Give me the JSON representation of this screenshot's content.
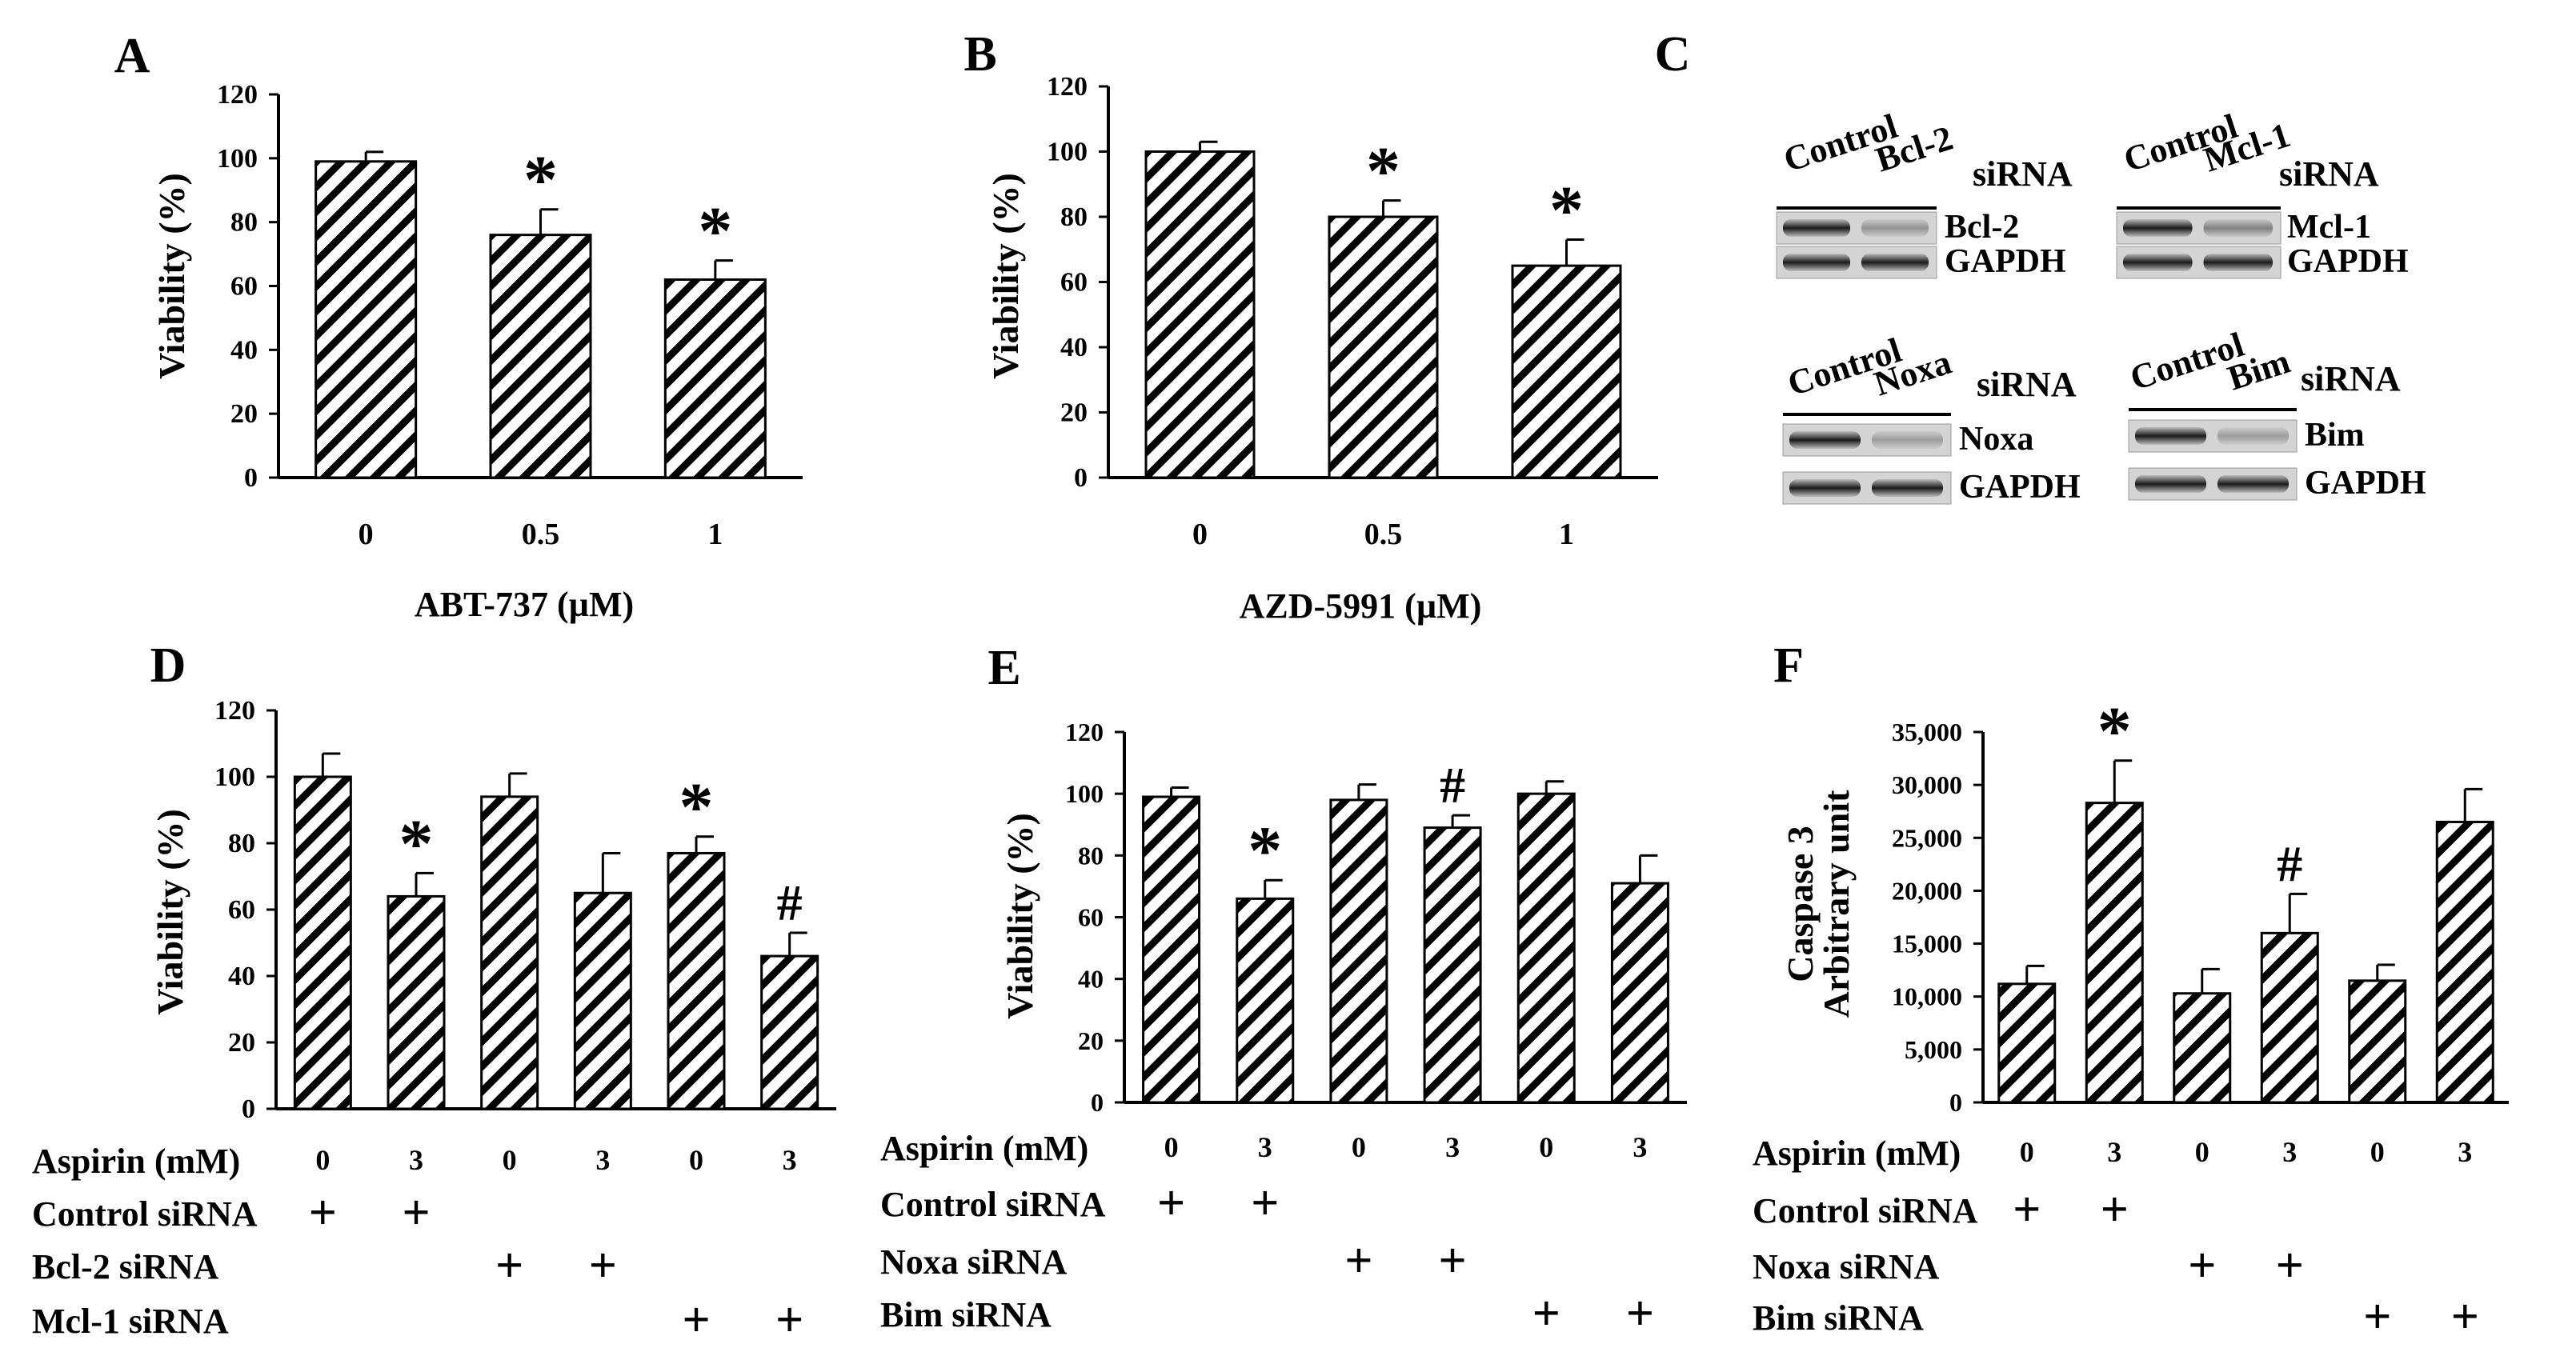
{
  "chart_data": [
    {
      "panel": "A",
      "type": "bar",
      "categories": [
        "0",
        "0.5",
        "1"
      ],
      "values": [
        99,
        76,
        62
      ],
      "errors": [
        3,
        8,
        6
      ],
      "annotations": [
        "",
        "*",
        "*"
      ],
      "xlabel": "ABT-737 (µM)",
      "ylabel": "Viability (%)",
      "ylim": [
        0,
        120
      ],
      "yticks": [
        "0",
        "20",
        "40",
        "60",
        "80",
        "100",
        "120"
      ],
      "grid": false
    },
    {
      "panel": "B",
      "type": "bar",
      "categories": [
        "0",
        "0.5",
        "1"
      ],
      "values": [
        100,
        80,
        65
      ],
      "errors": [
        3,
        5,
        8
      ],
      "annotations": [
        "",
        "*",
        "*"
      ],
      "xlabel": "AZD-5991 (µM)",
      "ylabel": "Viability (%)",
      "ylim": [
        0,
        120
      ],
      "yticks": [
        "0",
        "20",
        "40",
        "60",
        "80",
        "100",
        "120"
      ],
      "grid": false
    },
    {
      "panel": "D",
      "type": "bar",
      "categories": [
        "0",
        "3",
        "0",
        "3",
        "0",
        "3"
      ],
      "values": [
        100,
        64,
        94,
        65,
        77,
        46
      ],
      "errors": [
        7,
        7,
        7,
        12,
        5,
        7
      ],
      "annotations": [
        "",
        "*",
        "",
        "",
        "*",
        "#"
      ],
      "ylabel": "Viability (%)",
      "ylim": [
        0,
        120
      ],
      "yticks": [
        "0",
        "20",
        "40",
        "60",
        "80",
        "100",
        "120"
      ],
      "grid": false,
      "condition_rows": [
        {
          "label": "Aspirin (mM)",
          "marks": [
            "0",
            "3",
            "0",
            "3",
            "0",
            "3"
          ]
        },
        {
          "label": "Control siRNA",
          "marks": [
            "+",
            "+",
            "",
            "",
            "",
            ""
          ]
        },
        {
          "label": "Bcl-2 siRNA",
          "marks": [
            "",
            "",
            "+",
            "+",
            "",
            ""
          ]
        },
        {
          "label": "Mcl-1 siRNA",
          "marks": [
            "",
            "",
            "",
            "",
            "+",
            "+"
          ]
        }
      ]
    },
    {
      "panel": "E",
      "type": "bar",
      "categories": [
        "0",
        "3",
        "0",
        "3",
        "0",
        "3"
      ],
      "values": [
        99,
        66,
        98,
        89,
        100,
        71
      ],
      "errors": [
        3,
        6,
        5,
        4,
        4,
        9
      ],
      "annotations": [
        "",
        "*",
        "",
        "#",
        "",
        ""
      ],
      "ylabel": "Viability (%)",
      "ylim": [
        0,
        120
      ],
      "yticks": [
        "0",
        "20",
        "40",
        "60",
        "80",
        "100",
        "120"
      ],
      "grid": false,
      "condition_rows": [
        {
          "label": "Aspirin (mM)",
          "marks": [
            "0",
            "3",
            "0",
            "3",
            "0",
            "3"
          ]
        },
        {
          "label": "Control siRNA",
          "marks": [
            "+",
            "+",
            "",
            "",
            "",
            ""
          ]
        },
        {
          "label": "Noxa siRNA",
          "marks": [
            "",
            "",
            "+",
            "+",
            "",
            ""
          ]
        },
        {
          "label": "Bim siRNA",
          "marks": [
            "",
            "",
            "",
            "",
            "+",
            "+"
          ]
        }
      ]
    },
    {
      "panel": "F",
      "type": "bar",
      "categories": [
        "0",
        "3",
        "0",
        "3",
        "0",
        "3"
      ],
      "values": [
        11200,
        28300,
        10300,
        16000,
        11500,
        26500
      ],
      "errors": [
        1700,
        4000,
        2300,
        3700,
        1500,
        3100
      ],
      "annotations": [
        "",
        "*",
        "",
        "#",
        "",
        ""
      ],
      "ylabel": "Caspase 3",
      "ylabel2": "Arbitrary unit",
      "ylim": [
        0,
        35000
      ],
      "yticks": [
        "0",
        "5,000",
        "10,000",
        "15,000",
        "20,000",
        "25,000",
        "30,000",
        "35,000"
      ],
      "grid": false,
      "condition_rows": [
        {
          "label": "Aspirin (mM)",
          "marks": [
            "0",
            "3",
            "0",
            "3",
            "0",
            "3"
          ]
        },
        {
          "label": "Control siRNA",
          "marks": [
            "+",
            "+",
            "",
            "",
            "",
            ""
          ]
        },
        {
          "label": "Noxa siRNA",
          "marks": [
            "",
            "",
            "+",
            "+",
            "",
            ""
          ]
        },
        {
          "label": "Bim siRNA",
          "marks": [
            "",
            "",
            "",
            "",
            "+",
            "+"
          ]
        }
      ]
    }
  ],
  "panel_c": {
    "letter": "C",
    "blots": [
      {
        "control": "Control",
        "target": "Bcl-2",
        "suffix": "siRNA",
        "bands": [
          "Bcl-2",
          "GAPDH"
        ],
        "knockdown": 0.35
      },
      {
        "control": "Control",
        "target": "Mcl-1",
        "suffix": "siRNA",
        "bands": [
          "Mcl-1",
          "GAPDH"
        ],
        "knockdown": 0.45
      },
      {
        "control": "Control",
        "target": "Noxa",
        "suffix": "siRNA",
        "bands": [
          "Noxa",
          "GAPDH"
        ],
        "knockdown": 0.3
      },
      {
        "control": "Control",
        "target": "Bim",
        "suffix": "siRNA",
        "bands": [
          "Bim",
          "GAPDH"
        ],
        "knockdown": 0.3
      }
    ]
  }
}
